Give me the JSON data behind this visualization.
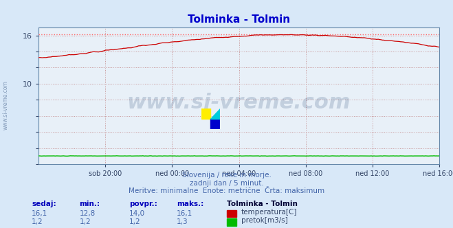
{
  "title": "Tolminka - Tolmin",
  "title_color": "#0000cc",
  "bg_color": "#d8e8f8",
  "plot_bg_color": "#e8f0f8",
  "grid_color": "#c08080",
  "grid_style": ":",
  "xlabel_ticks": [
    "sob 20:00",
    "ned 00:00",
    "ned 04:00",
    "ned 08:00",
    "ned 12:00",
    "ned 16:00"
  ],
  "tick_positions": [
    48,
    96,
    144,
    192,
    240,
    288
  ],
  "ytick_positions": [
    0,
    2,
    4,
    6,
    8,
    10,
    12,
    14,
    16
  ],
  "ytick_labels": [
    "",
    "",
    "",
    "",
    "",
    "10",
    "",
    "",
    "16"
  ],
  "ylim": [
    0,
    17.0
  ],
  "xlim": [
    0,
    288
  ],
  "temp_color": "#cc0000",
  "pretok_color": "#00bb00",
  "max_line_color": "#ff6666",
  "max_line_style": ":",
  "watermark_text": "www.si-vreme.com",
  "watermark_color": "#1a3a6a",
  "watermark_alpha": 0.18,
  "subtitle1": "Slovenija / reke in morje.",
  "subtitle2": "zadnji dan / 5 minut.",
  "subtitle3": "Meritve: minimalne  Enote: metrične  Črta: maksimum",
  "subtitle_color": "#4466aa",
  "table_headers": [
    "sedaj:",
    "min.:",
    "povpr.:",
    "maks.:"
  ],
  "table_row1": [
    "16,1",
    "12,8",
    "14,0",
    "16,1"
  ],
  "table_row2": [
    "1,2",
    "1,2",
    "1,2",
    "1,3"
  ],
  "label_temp": "temperatura[C]",
  "label_pretok": "pretok[m3/s]",
  "station_label": "Tolminka - Tolmin",
  "left_label": "www.si-vreme.com",
  "left_label_color": "#1a3a6a",
  "max_temp": 16.1,
  "min_temp": 12.8,
  "n_points": 289
}
